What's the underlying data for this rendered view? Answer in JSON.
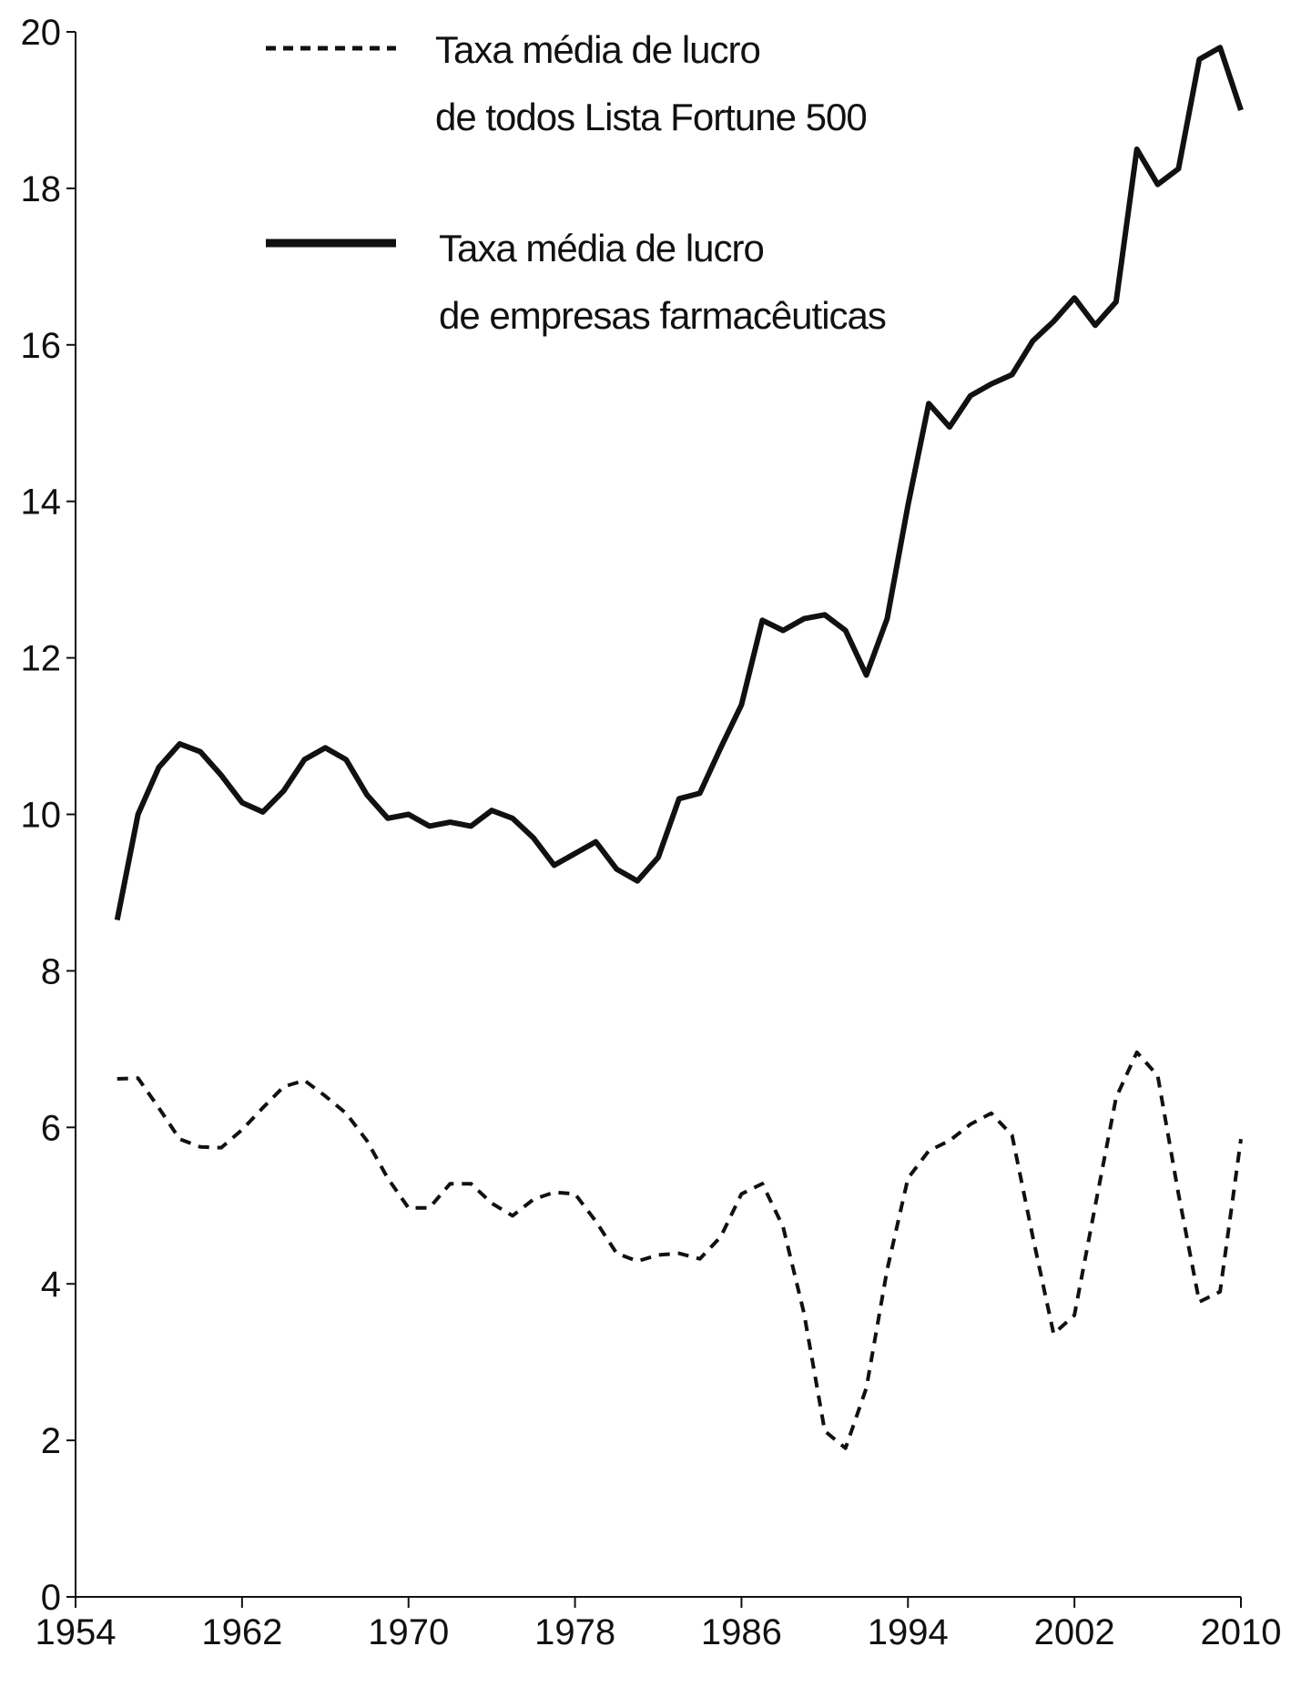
{
  "chart_data": {
    "type": "line",
    "xlim": [
      1954,
      2010
    ],
    "xticks": [
      1954,
      1962,
      1970,
      1978,
      1986,
      1994,
      2002,
      2010
    ],
    "ylim": [
      0,
      20
    ],
    "yticks": [
      0,
      2,
      4,
      6,
      8,
      10,
      12,
      14,
      16,
      18,
      20
    ],
    "series": [
      {
        "name": "Taxa média de lucro\nde todos Lista Fortune 500",
        "color": "#111111",
        "style": "dashed",
        "x": [
          1956,
          1957,
          1958,
          1959,
          1960,
          1961,
          1962,
          1963,
          1964,
          1965,
          1966,
          1967,
          1968,
          1969,
          1970,
          1971,
          1972,
          1973,
          1974,
          1975,
          1976,
          1977,
          1978,
          1979,
          1980,
          1981,
          1982,
          1983,
          1984,
          1985,
          1986,
          1987,
          1988,
          1989,
          1990,
          1991,
          1992,
          1993,
          1994,
          1995,
          1996,
          1997,
          1998,
          1999,
          2000,
          2001,
          2002,
          2003,
          2004,
          2005,
          2006,
          2007,
          2008,
          2009,
          2010
        ],
        "values": [
          6.62,
          6.63,
          6.25,
          5.85,
          5.75,
          5.74,
          5.97,
          6.25,
          6.52,
          6.6,
          6.4,
          6.18,
          5.83,
          5.35,
          4.97,
          4.97,
          5.28,
          5.28,
          5.03,
          4.87,
          5.08,
          5.17,
          5.15,
          4.8,
          4.39,
          4.29,
          4.37,
          4.39,
          4.32,
          4.6,
          5.15,
          5.28,
          4.73,
          3.63,
          2.12,
          1.9,
          2.67,
          4.18,
          5.35,
          5.7,
          5.83,
          6.04,
          6.18,
          5.9,
          4.6,
          3.36,
          3.6,
          5.0,
          6.38,
          6.96,
          6.66,
          5.15,
          3.77,
          3.9,
          5.85
        ]
      },
      {
        "name": "Taxa média de lucro\nde empresas farmacêuticas",
        "color": "#111111",
        "style": "solid",
        "x": [
          1956,
          1957,
          1958,
          1959,
          1960,
          1961,
          1962,
          1963,
          1964,
          1965,
          1966,
          1967,
          1968,
          1969,
          1970,
          1971,
          1972,
          1973,
          1974,
          1975,
          1976,
          1977,
          1978,
          1979,
          1980,
          1981,
          1982,
          1983,
          1984,
          1985,
          1986,
          1987,
          1988,
          1989,
          1990,
          1991,
          1992,
          1993,
          1994,
          1995,
          1996,
          1997,
          1998,
          1999,
          2000,
          2001,
          2002,
          2003,
          2004,
          2005,
          2006,
          2007,
          2008,
          2009,
          2010
        ],
        "values": [
          8.65,
          10.0,
          10.6,
          10.9,
          10.8,
          10.5,
          10.15,
          10.03,
          10.3,
          10.7,
          10.85,
          10.7,
          10.25,
          9.95,
          10.0,
          9.85,
          9.9,
          9.85,
          10.05,
          9.95,
          9.7,
          9.35,
          9.5,
          9.65,
          9.3,
          9.15,
          9.45,
          10.2,
          10.27,
          10.85,
          11.4,
          12.48,
          12.35,
          12.5,
          12.55,
          12.35,
          11.78,
          12.5,
          13.95,
          15.25,
          14.95,
          15.35,
          15.5,
          15.62,
          16.05,
          16.3,
          16.6,
          16.25,
          16.55,
          18.5,
          18.05,
          18.25,
          19.65,
          19.8,
          19.0
        ]
      }
    ]
  }
}
